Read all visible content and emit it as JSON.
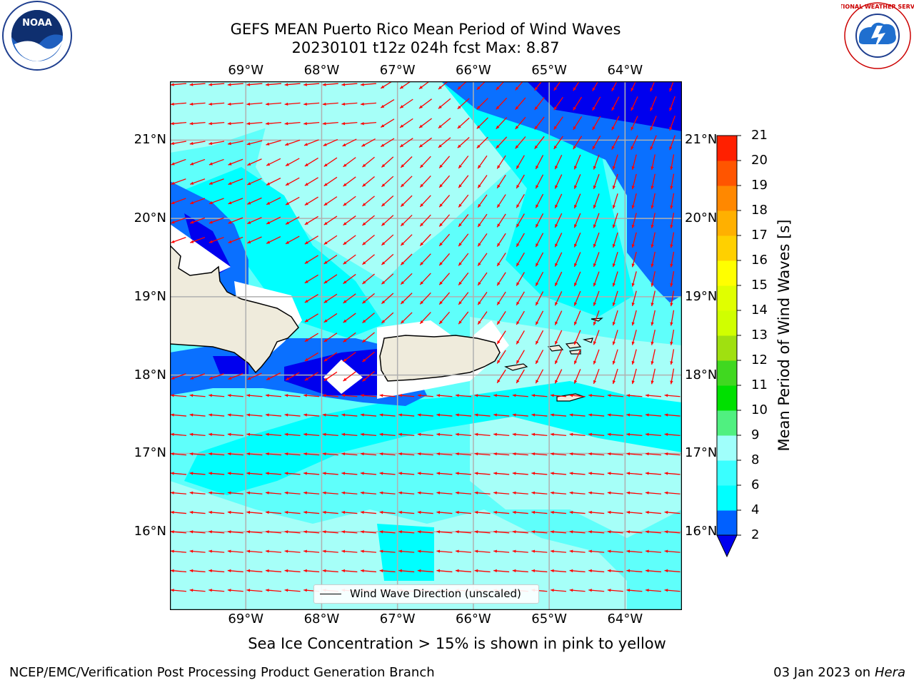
{
  "title": {
    "line1": "GEFS MEAN Puerto Rico Mean Period of Wind Waves",
    "line2": "20230101 t12z 024h fcst   Max: 8.87"
  },
  "map": {
    "lon_labels": [
      "69°W",
      "68°W",
      "67°W",
      "66°W",
      "65°W",
      "64°W"
    ],
    "lat_labels": [
      "21°N",
      "20°N",
      "19°N",
      "18°N",
      "17°N",
      "16°N"
    ],
    "lon_values": [
      -69,
      -68,
      -67,
      -66,
      -65,
      -64
    ],
    "lat_values": [
      21,
      20,
      19,
      18,
      17,
      16
    ],
    "extent": {
      "lon": [
        -70,
        -63.25
      ],
      "lat": [
        15,
        21.75
      ]
    },
    "land_color": "#efebdc",
    "arrow_color": "#ff0000",
    "legend_label": "Wind Wave Direction (unscaled)"
  },
  "colorbar": {
    "label": "Mean Period of Wind Waves [s]",
    "tick_labels": [
      "2",
      "4",
      "6",
      "8",
      "9",
      "10",
      "11",
      "12",
      "13",
      "14",
      "15",
      "16",
      "17",
      "18",
      "19",
      "20",
      "21"
    ],
    "levels": [
      2,
      4,
      6,
      8,
      9,
      10,
      11,
      12,
      13,
      14,
      15,
      16,
      17,
      18,
      19,
      20,
      21
    ],
    "colors": [
      "#0060ff",
      "#00ffff",
      "#3affff",
      "#a0fffb",
      "#50f080",
      "#00e000",
      "#40d820",
      "#a0e010",
      "#d0ff00",
      "#e0ff00",
      "#ffff00",
      "#ffd000",
      "#ffb000",
      "#ff8800",
      "#ff5500",
      "#ff2000"
    ],
    "under_color": "#0000ee",
    "extend": "min"
  },
  "note": "Sea Ice Concentration > 15% is shown in pink to yellow",
  "footer": {
    "left": "NCEP/EMC/Verification Post Processing Product Generation Branch",
    "date": "03 Jan 2023 on ",
    "host": "Hera"
  },
  "logos": {
    "noaa_text": "NOAA",
    "nws_text": "NATIONAL WEATHER SERVICE"
  }
}
